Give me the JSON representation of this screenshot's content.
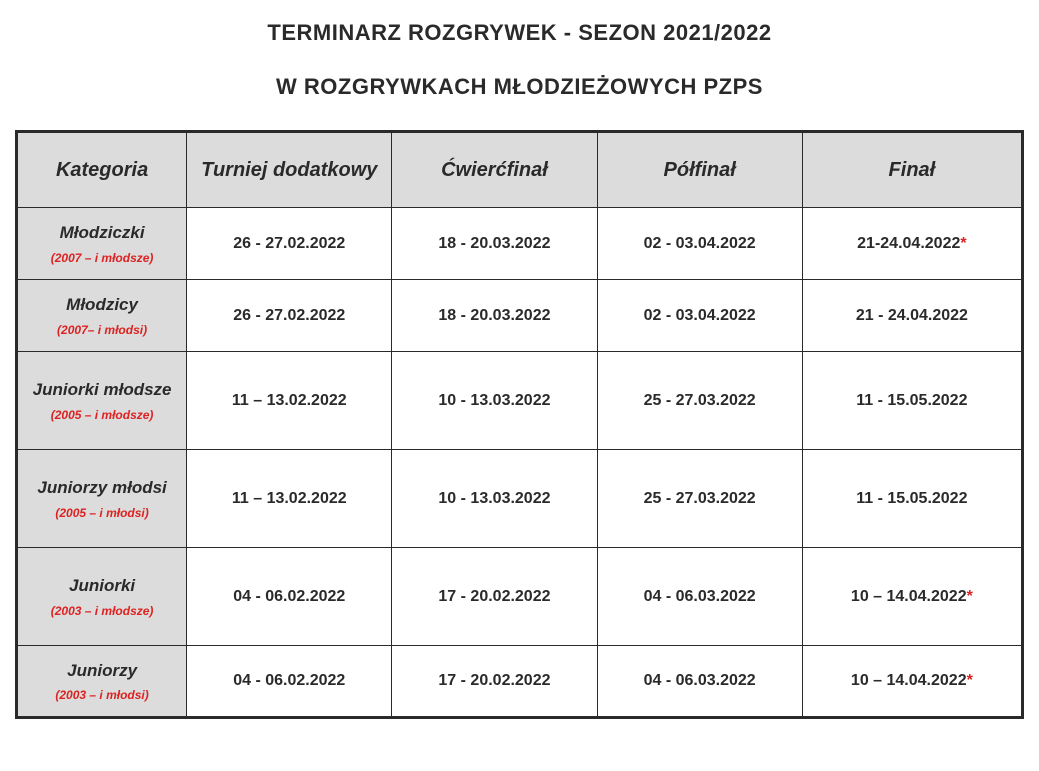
{
  "title": {
    "line1": "TERMINARZ ROZGRYWEK - SEZON 2021/2022",
    "line2": "W  ROZGRYWKACH MŁODZIEŻOWYCH PZPS"
  },
  "table": {
    "headers": {
      "category": "Kategoria",
      "additional": "Turniej dodatkowy",
      "quarter": "Ćwierćfinał",
      "semi": "Półfinał",
      "final": "Finał"
    },
    "rows": [
      {
        "heightClass": "row-h1",
        "category": {
          "name": "Młodziczki",
          "note": "(2007 – i młodsze)"
        },
        "additional": "26 - 27.02.2022",
        "quarter": "18 - 20.03.2022",
        "semi": "02 - 03.04.2022",
        "final": "21-24.04.2022",
        "final_asterisk": "*"
      },
      {
        "heightClass": "row-h1",
        "category": {
          "name": "Młodzicy",
          "note": "(2007– i młodsi)"
        },
        "additional": "26 - 27.02.2022",
        "quarter": "18 - 20.03.2022",
        "semi": "02 - 03.04.2022",
        "final": "21 - 24.04.2022",
        "final_asterisk": ""
      },
      {
        "heightClass": "row-h2",
        "category": {
          "name": "Juniorki młodsze",
          "note": "(2005 – i młodsze)"
        },
        "additional": "11 – 13.02.2022",
        "quarter": "10 - 13.03.2022",
        "semi": "25 - 27.03.2022",
        "final": "11 - 15.05.2022",
        "final_asterisk": ""
      },
      {
        "heightClass": "row-h2",
        "category": {
          "name": "Juniorzy młodsi",
          "note": "(2005 – i młodsi)"
        },
        "additional": "11 – 13.02.2022",
        "quarter": "10 - 13.03.2022",
        "semi": "25 - 27.03.2022",
        "final": "11 - 15.05.2022",
        "final_asterisk": ""
      },
      {
        "heightClass": "row-h2",
        "category": {
          "name": "Juniorki",
          "note": "(2003 – i młodsze)"
        },
        "additional": "04 - 06.02.2022",
        "quarter": "17 - 20.02.2022",
        "semi": "04 - 06.03.2022",
        "final": "10 – 14.04.2022",
        "final_asterisk": "*"
      },
      {
        "heightClass": "row-h1",
        "category": {
          "name": "Juniorzy",
          "note": "(2003 – i młodsi)"
        },
        "additional": "04 - 06.02.2022",
        "quarter": "17 - 20.02.2022",
        "semi": "04 - 06.03.2022",
        "final": "10 – 14.04.2022",
        "final_asterisk": "*"
      }
    ]
  }
}
